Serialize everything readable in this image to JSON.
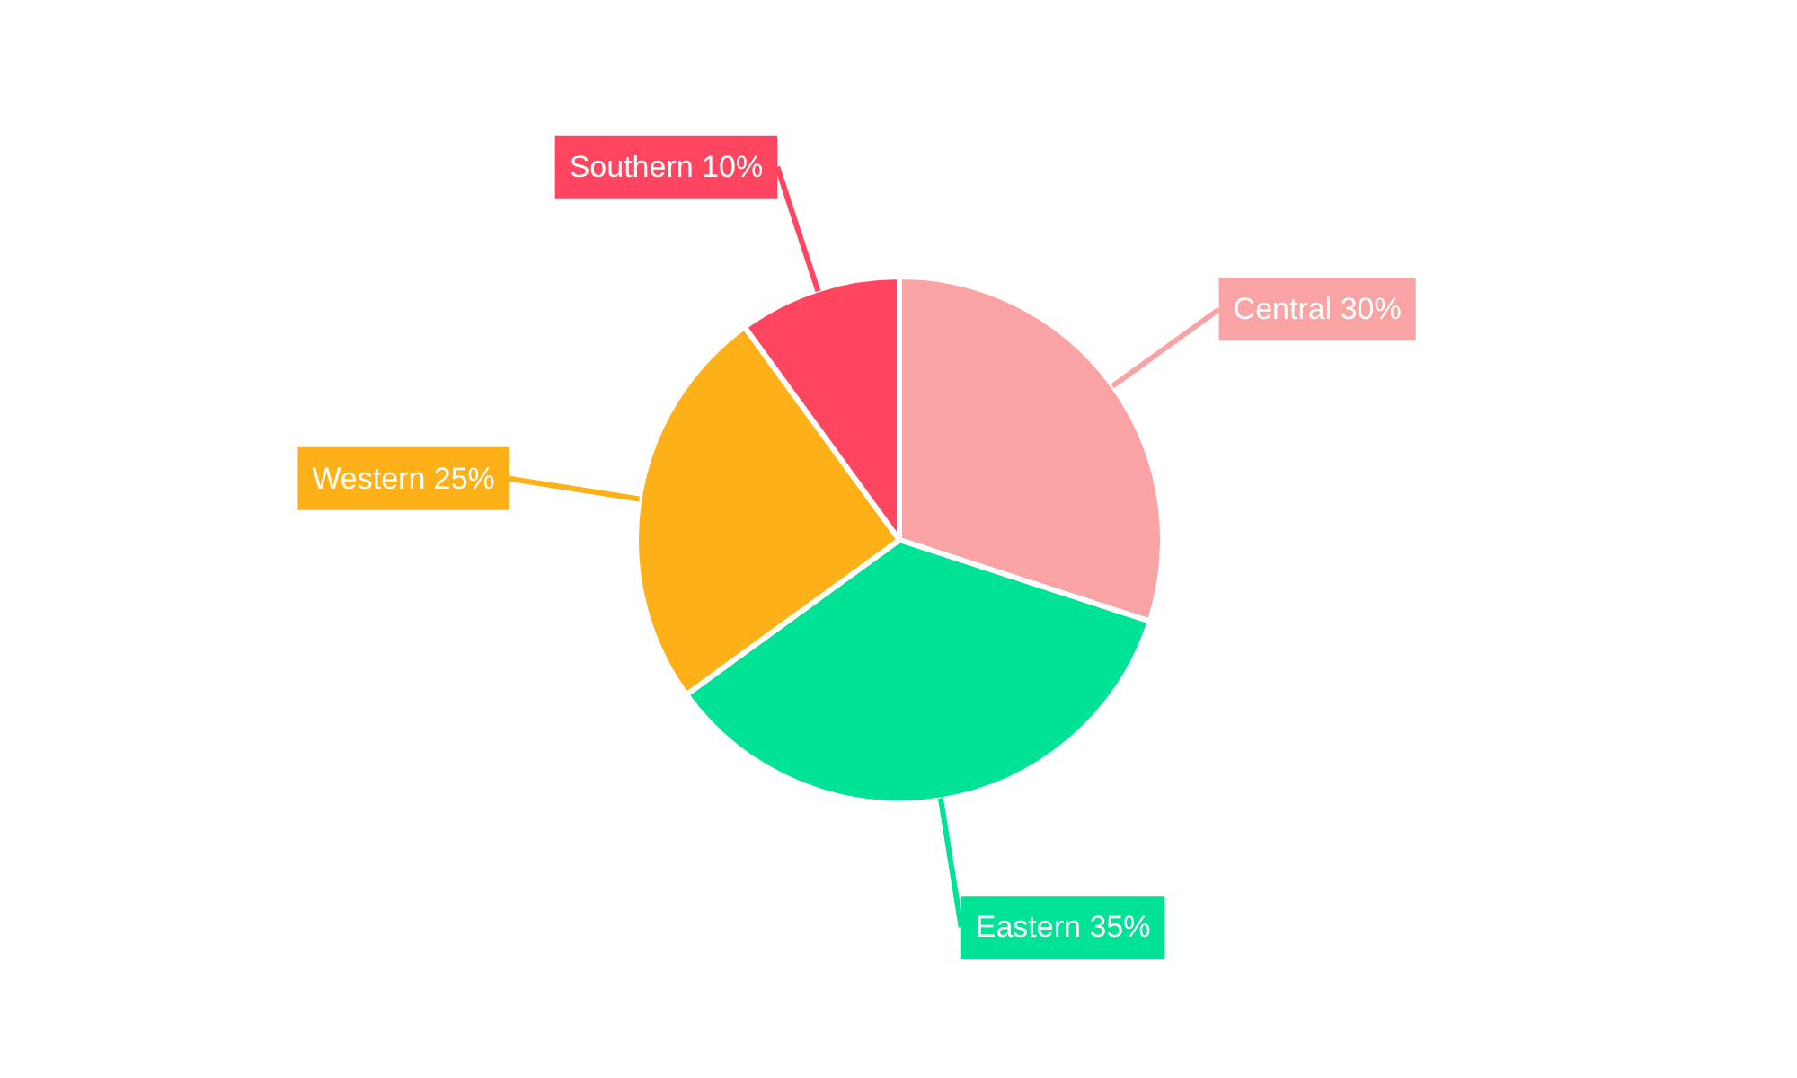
{
  "chart_data": {
    "type": "pie",
    "categories": [
      "Central",
      "Eastern",
      "Western",
      "Southern"
    ],
    "values": [
      30,
      35,
      25,
      10
    ],
    "value_labels": [
      "30%",
      "35%",
      "25%",
      "10%"
    ],
    "colors": [
      "#f9a3a4",
      "#00e396",
      "#feb019",
      "#ff4560"
    ]
  }
}
